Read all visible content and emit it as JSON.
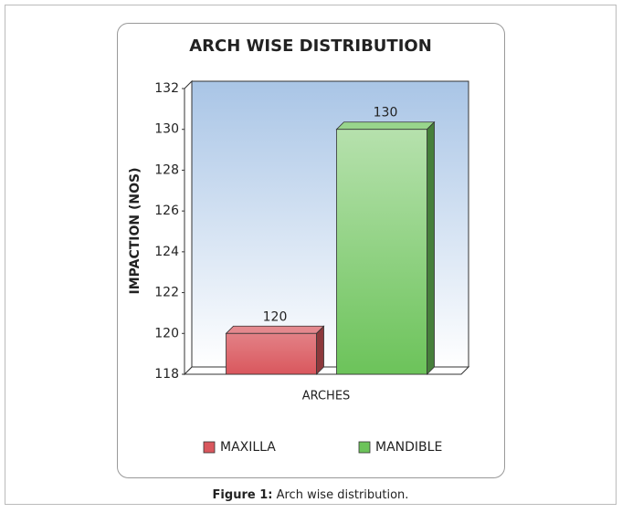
{
  "chart_data": {
    "type": "bar",
    "title": "ARCH WISE DISTRIBUTION",
    "y_label": "IMPACTION (NOS)",
    "x_label": "ARCHES",
    "categories": [
      "ARCHES"
    ],
    "series": [
      {
        "name": "MAXILLA",
        "color": "#d9575d",
        "values": [
          120
        ]
      },
      {
        "name": "MANDIBLE",
        "color": "#6cc35a",
        "values": [
          130
        ]
      }
    ],
    "ylim": [
      118,
      132
    ],
    "yticks": [
      118,
      120,
      122,
      124,
      126,
      128,
      130,
      132
    ],
    "legend": "bottom",
    "caption": {
      "label": "Figure 1:",
      "text": "Arch wise distribution."
    }
  }
}
